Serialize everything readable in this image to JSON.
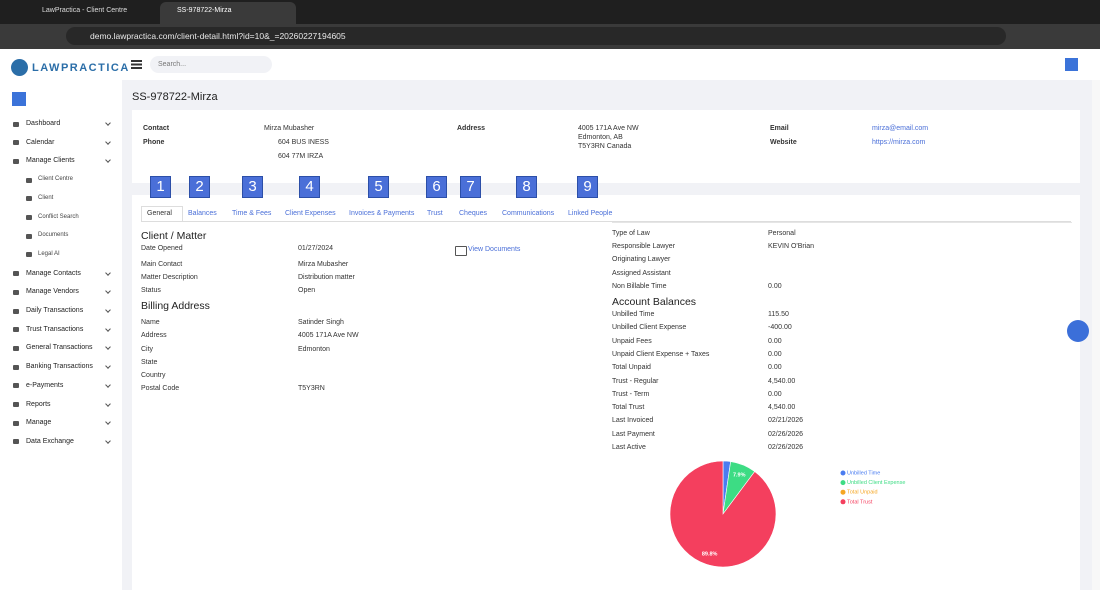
{
  "browser": {
    "tabs": [
      "LawPractica - Client Centre",
      "SS-978722-Mirza"
    ],
    "url": "demo.lawpractica.com/client-detail.html?id=10&_=20260227194605"
  },
  "app": {
    "logo": "LAWPRACTICA",
    "search_placeholder": "Search..."
  },
  "sidebar": {
    "items": [
      "Dashboard",
      "Calendar",
      "Manage Clients",
      "Manage Contacts",
      "Manage Vendors",
      "Daily Transactions",
      "Trust Transactions",
      "General Transactions",
      "Banking Transactions",
      "e-Payments",
      "Reports",
      "Manage",
      "Data Exchange"
    ],
    "submenu": [
      "Client Centre",
      "Client",
      "Conflict Search",
      "Documents",
      "Legal AI"
    ]
  },
  "page": {
    "title": "SS-978722-Mirza"
  },
  "contact_card": {
    "contact_label": "Contact",
    "contact_name": "Mirza Mubasher",
    "phone_label": "Phone",
    "phones": [
      "604 BUS INESS",
      "604 77M IRZA"
    ],
    "address_label": "Address",
    "address_lines": [
      "4005 171A Ave NW",
      "Edmonton, AB",
      "T5Y3RN Canada"
    ],
    "email_label": "Email",
    "email": "mirza@email.com",
    "website_label": "Website",
    "website": "https://mirza.com"
  },
  "tabs": [
    "General",
    "Balances",
    "Time & Fees",
    "Client Expenses",
    "Invoices & Payments",
    "Trust",
    "Cheques",
    "Communications",
    "Linked People"
  ],
  "tab_numbers": [
    1,
    2,
    3,
    4,
    5,
    6,
    7,
    8,
    9
  ],
  "general": {
    "client_matter_heading": "Client / Matter",
    "client_matter": [
      [
        "Date Opened",
        "01/27/2024"
      ],
      [
        "Main Contact",
        "Mirza Mubasher"
      ],
      [
        "Matter Description",
        "Distribution matter"
      ],
      [
        "Status",
        "Open"
      ]
    ],
    "view_documents": "View Documents",
    "billing_heading": "Billing Address",
    "billing": [
      [
        "Name",
        "Satinder Singh"
      ],
      [
        "Address",
        "4005 171A Ave NW"
      ],
      [
        "City",
        "Edmonton"
      ],
      [
        "State"
      ],
      [
        "Country"
      ],
      [
        "Postal Code",
        "T5Y3RN"
      ]
    ],
    "details": [
      [
        "Type of Law",
        "Personal"
      ],
      [
        "Responsible Lawyer",
        "KEVIN O'Brian"
      ],
      [
        "Originating Lawyer"
      ],
      [
        "Assigned Assistant"
      ],
      [
        "Non Billable Time",
        "0.00"
      ]
    ],
    "balances_heading": "Account Balances",
    "balances": [
      [
        "Unbilled Time",
        "115.50"
      ],
      [
        "Unbilled Client Expense",
        "-400.00"
      ],
      [
        "Unpaid Fees",
        "0.00"
      ],
      [
        "Unpaid Client Expense + Taxes",
        "0.00"
      ],
      [
        "Total Unpaid",
        "0.00"
      ],
      [
        "Trust - Regular",
        "4,540.00"
      ],
      [
        "Trust - Term",
        "0.00"
      ],
      [
        "Total Trust",
        "4,540.00"
      ],
      [
        "Last Invoiced",
        "02/21/2026"
      ],
      [
        "Last Payment",
        "02/26/2026"
      ],
      [
        "Last Active",
        "02/26/2026"
      ]
    ]
  },
  "chart_data": {
    "type": "pie",
    "categories": [
      "Unbilled Time",
      "Unbilled Client Expense",
      "Total Unpaid",
      "Total Trust"
    ],
    "values": [
      2.3,
      7.9,
      0,
      89.8
    ],
    "value_labels": [
      null,
      "7.9%",
      null,
      "89.8%"
    ],
    "colors": [
      "#4a7cf0",
      "#3ddc84",
      "#f5a623",
      "#f43f5e"
    ]
  }
}
